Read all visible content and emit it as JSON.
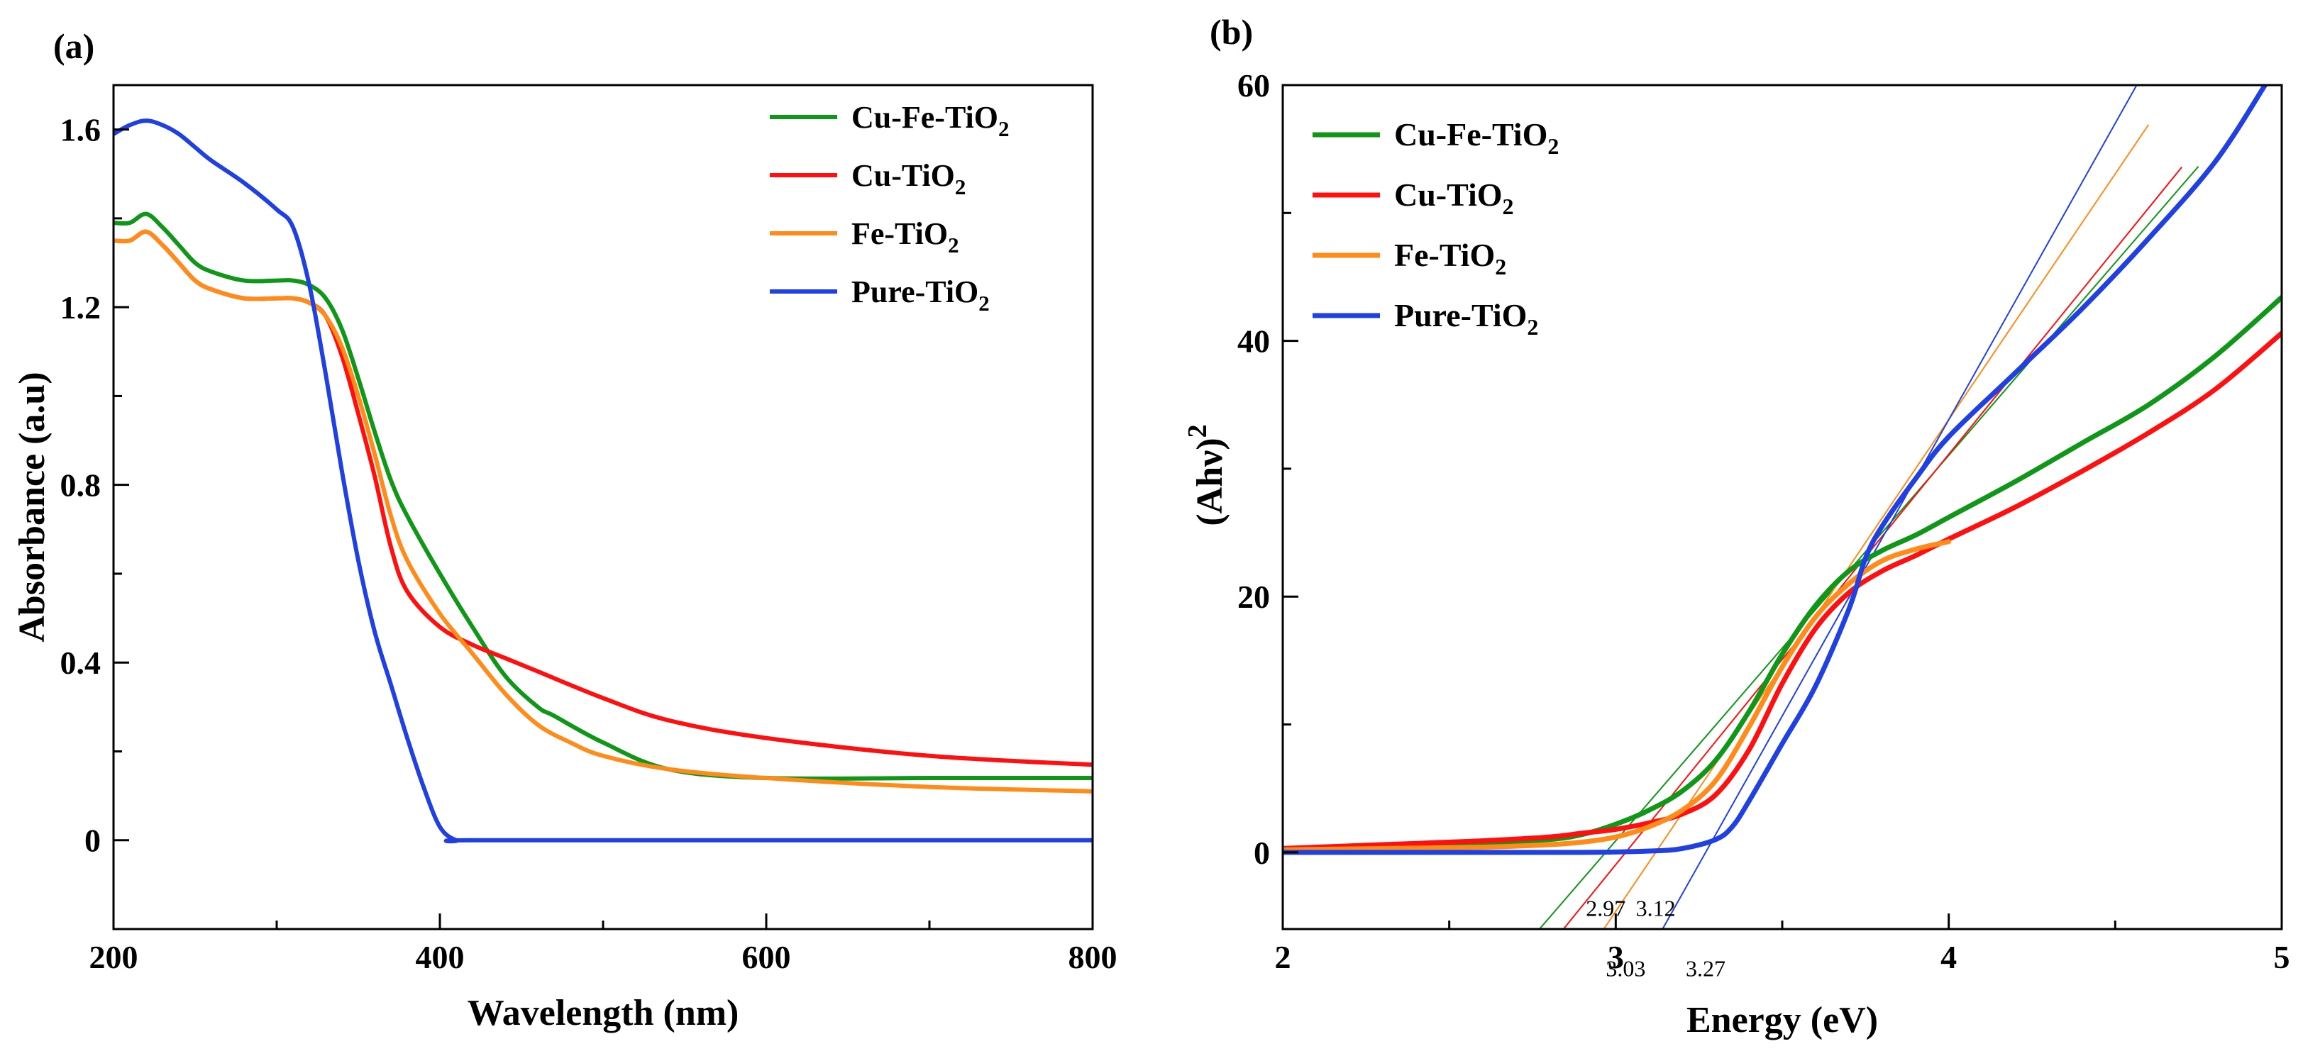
{
  "colors": {
    "cu_fe": "#109618",
    "cu": "#FF1010",
    "fe": "#FF8C1A",
    "pure": "#2040E0",
    "axis": "#000000"
  },
  "chart_data": [
    {
      "type": "line",
      "panel_label": "(a)",
      "xlabel": "Wavelength (nm)",
      "ylabel": "Absorbance (a.u)",
      "xlim": [
        200,
        800
      ],
      "ylim": [
        -0.2,
        1.7
      ],
      "xticks": [
        200,
        400,
        600,
        800
      ],
      "yticks": [
        0,
        0.4,
        0.8,
        1.2,
        1.6
      ],
      "xtick_labels": [
        "200",
        "400",
        "600",
        "800"
      ],
      "ytick_labels": [
        "0",
        "0.4",
        "0.8",
        "1.2",
        "1.6"
      ],
      "grid": false,
      "legend": "top-right",
      "series": [
        {
          "key": "cu_fe",
          "name": "Cu-Fe-TiO",
          "sub": "2",
          "x": [
            200,
            210,
            220,
            230,
            240,
            250,
            260,
            280,
            300,
            310,
            320,
            330,
            340,
            350,
            360,
            370,
            380,
            400,
            420,
            440,
            460,
            470,
            500,
            540,
            600,
            700,
            800
          ],
          "y": [
            1.39,
            1.39,
            1.41,
            1.38,
            1.34,
            1.3,
            1.28,
            1.26,
            1.26,
            1.26,
            1.25,
            1.22,
            1.15,
            1.04,
            0.92,
            0.81,
            0.73,
            0.6,
            0.48,
            0.37,
            0.3,
            0.28,
            0.22,
            0.16,
            0.14,
            0.14,
            0.14
          ]
        },
        {
          "key": "cu",
          "name": "Cu-TiO",
          "sub": "2",
          "x": [
            200,
            210,
            220,
            230,
            240,
            250,
            260,
            280,
            300,
            310,
            320,
            330,
            340,
            350,
            360,
            370,
            380,
            400,
            420,
            440,
            460,
            500,
            540,
            600,
            700,
            800
          ],
          "y": [
            1.35,
            1.35,
            1.37,
            1.34,
            1.3,
            1.26,
            1.24,
            1.22,
            1.22,
            1.22,
            1.21,
            1.18,
            1.09,
            0.96,
            0.82,
            0.66,
            0.56,
            0.48,
            0.44,
            0.41,
            0.38,
            0.32,
            0.27,
            0.23,
            0.19,
            0.17
          ]
        },
        {
          "key": "fe",
          "name": "Fe-TiO",
          "sub": "2",
          "x": [
            200,
            210,
            220,
            230,
            240,
            250,
            260,
            280,
            300,
            310,
            320,
            330,
            340,
            350,
            360,
            370,
            380,
            400,
            420,
            440,
            460,
            480,
            500,
            540,
            600,
            700,
            800
          ],
          "y": [
            1.35,
            1.35,
            1.37,
            1.34,
            1.3,
            1.26,
            1.24,
            1.22,
            1.22,
            1.22,
            1.21,
            1.18,
            1.11,
            1.0,
            0.87,
            0.73,
            0.63,
            0.51,
            0.42,
            0.33,
            0.26,
            0.22,
            0.19,
            0.16,
            0.14,
            0.12,
            0.11
          ]
        },
        {
          "key": "pure",
          "name": "Pure-TiO",
          "sub": "2",
          "x": [
            200,
            210,
            220,
            230,
            240,
            250,
            260,
            280,
            300,
            310,
            320,
            330,
            340,
            350,
            360,
            370,
            380,
            390,
            400,
            410,
            420,
            600,
            800
          ],
          "y": [
            1.59,
            1.61,
            1.62,
            1.61,
            1.59,
            1.56,
            1.53,
            1.48,
            1.42,
            1.38,
            1.25,
            1.05,
            0.83,
            0.63,
            0.47,
            0.35,
            0.23,
            0.12,
            0.03,
            0.0,
            0.0,
            0.0,
            0.0
          ]
        }
      ]
    },
    {
      "type": "line",
      "panel_label": "(b)",
      "xlabel": "Energy (eV)",
      "ylabel": "(Ahν)",
      "ylabel_sup": "2",
      "xlim": [
        2,
        5
      ],
      "ylim": [
        -6,
        60
      ],
      "xticks": [
        2,
        3,
        4,
        5
      ],
      "yticks": [
        0,
        20,
        40,
        60
      ],
      "xtick_labels": [
        "2",
        "3",
        "4",
        "5"
      ],
      "ytick_labels": [
        "0",
        "20",
        "40",
        "60"
      ],
      "grid": false,
      "legend": "top-left",
      "series": [
        {
          "key": "cu_fe",
          "name": "Cu-Fe-TiO",
          "sub": "2",
          "x": [
            2.0,
            2.3,
            2.6,
            2.8,
            2.9,
            3.0,
            3.1,
            3.2,
            3.3,
            3.4,
            3.5,
            3.6,
            3.7,
            3.8,
            3.9,
            4.0,
            4.2,
            4.4,
            4.6,
            4.8,
            5.0
          ],
          "y": [
            0.2,
            0.4,
            0.7,
            1.0,
            1.4,
            2.2,
            3.3,
            4.8,
            7.2,
            11.0,
            15.5,
            19.3,
            22.0,
            23.6,
            24.8,
            26.2,
            29.0,
            32.0,
            35.0,
            38.8,
            43.4
          ]
        },
        {
          "key": "cu",
          "name": "Cu-TiO",
          "sub": "2",
          "x": [
            2.0,
            2.3,
            2.6,
            2.8,
            2.9,
            3.0,
            3.1,
            3.2,
            3.3,
            3.4,
            3.5,
            3.6,
            3.7,
            3.8,
            3.9,
            4.0,
            4.2,
            4.4,
            4.6,
            4.8,
            5.0
          ],
          "y": [
            0.3,
            0.6,
            0.9,
            1.2,
            1.5,
            1.8,
            2.3,
            3.0,
            4.5,
            8.0,
            13.2,
            17.5,
            20.3,
            22.0,
            23.2,
            24.5,
            27.0,
            29.8,
            32.8,
            36.2,
            40.6
          ]
        },
        {
          "key": "fe",
          "name": "Fe-TiO",
          "sub": "2",
          "x": [
            2.0,
            2.3,
            2.6,
            2.8,
            2.9,
            3.0,
            3.1,
            3.2,
            3.3,
            3.4,
            3.5,
            3.6,
            3.7,
            3.8,
            3.9,
            4.0
          ],
          "y": [
            0.2,
            0.3,
            0.4,
            0.6,
            0.8,
            1.2,
            2.0,
            3.3,
            5.6,
            9.8,
            14.5,
            18.4,
            21.0,
            22.8,
            23.7,
            24.3
          ]
        },
        {
          "key": "pure",
          "name": "Pure-TiO",
          "sub": "2",
          "x": [
            2.0,
            2.5,
            2.9,
            3.1,
            3.2,
            3.3,
            3.35,
            3.4,
            3.5,
            3.6,
            3.7,
            3.75,
            3.8,
            3.9,
            4.0,
            4.2,
            4.4,
            4.6,
            4.8,
            4.95
          ],
          "y": [
            0.0,
            0.0,
            0.0,
            0.1,
            0.3,
            1.0,
            2.0,
            4.0,
            8.5,
            13.0,
            19.0,
            23.0,
            25.5,
            29.2,
            32.5,
            37.5,
            42.5,
            48.0,
            54.0,
            60.0
          ]
        }
      ],
      "tangents": [
        {
          "key": "cu_fe",
          "x": [
            2.97,
            4.75
          ]
        },
        {
          "key": "cu",
          "x": [
            3.03,
            4.7
          ]
        },
        {
          "key": "fe",
          "x": [
            3.12,
            4.6
          ]
        },
        {
          "key": "pure",
          "x": [
            3.27,
            5.0
          ]
        }
      ],
      "annotations": [
        {
          "text": "2.97",
          "x": 2.97,
          "y": -4.2
        },
        {
          "text": "3.12",
          "x": 3.12,
          "y": -4.2
        },
        {
          "text": "3.03",
          "x": 3.03,
          "y": -8.9
        },
        {
          "text": "3.27",
          "x": 3.27,
          "y": -8.9
        }
      ]
    }
  ]
}
